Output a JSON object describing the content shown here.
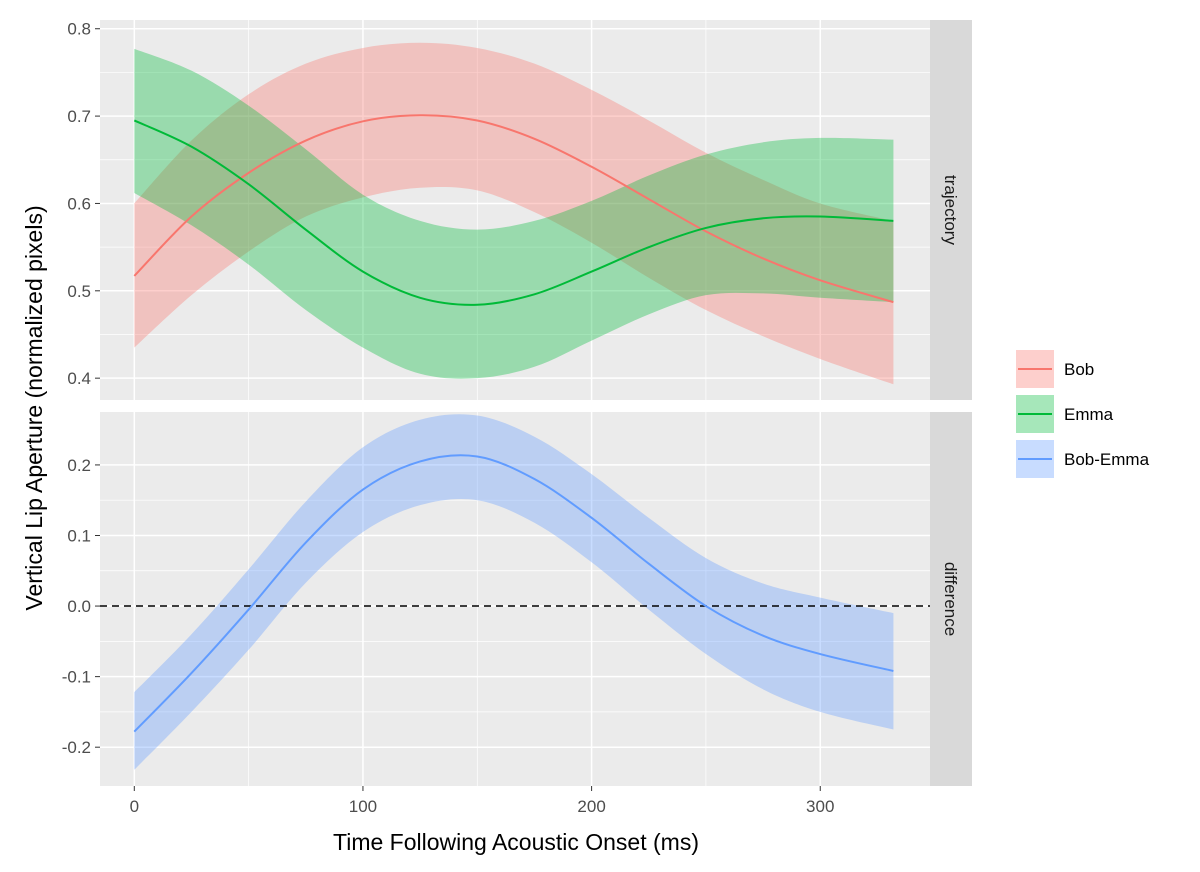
{
  "chart_data": {
    "type": "line",
    "xlabel": "Time Following Acoustic Onset (ms)",
    "ylabel": "Vertical Lip Aperture (normalized pixels)",
    "xlim": [
      -15,
      348
    ],
    "x_ticks": [
      0,
      100,
      200,
      300
    ],
    "grid": true,
    "legend_position": "right",
    "panels": [
      {
        "strip": "trajectory",
        "ylim": [
          0.375,
          0.81
        ],
        "y_ticks": [
          0.4,
          0.5,
          0.6,
          0.7,
          0.8
        ],
        "y_tick_labels": [
          "0.4",
          "0.5",
          "0.6",
          "0.7",
          "0.8"
        ],
        "reference_line": null,
        "series": [
          {
            "name": "Bob",
            "color": "#F8766D",
            "x": [
              0,
              25,
              50,
              75,
              100,
              125,
              150,
              175,
              200,
              225,
              250,
              275,
              300,
              332
            ],
            "y": [
              0.517,
              0.585,
              0.635,
              0.672,
              0.694,
              0.701,
              0.695,
              0.674,
              0.642,
              0.605,
              0.568,
              0.537,
              0.512,
              0.487
            ],
            "lower": [
              0.435,
              0.495,
              0.545,
              0.585,
              0.607,
              0.618,
              0.615,
              0.59,
              0.555,
              0.515,
              0.478,
              0.448,
              0.422,
              0.393
            ],
            "upper": [
              0.6,
              0.672,
              0.725,
              0.76,
              0.778,
              0.784,
              0.778,
              0.76,
              0.73,
              0.695,
              0.658,
              0.627,
              0.6,
              0.58
            ]
          },
          {
            "name": "Emma",
            "color": "#00BA38",
            "x": [
              0,
              25,
              50,
              75,
              100,
              125,
              150,
              175,
              200,
              225,
              250,
              275,
              300,
              332
            ],
            "y": [
              0.695,
              0.665,
              0.622,
              0.57,
              0.522,
              0.492,
              0.484,
              0.496,
              0.522,
              0.55,
              0.572,
              0.583,
              0.585,
              0.58
            ],
            "lower": [
              0.612,
              0.575,
              0.53,
              0.478,
              0.435,
              0.405,
              0.4,
              0.413,
              0.443,
              0.473,
              0.495,
              0.497,
              0.492,
              0.487
            ],
            "upper": [
              0.777,
              0.752,
              0.712,
              0.662,
              0.61,
              0.58,
              0.57,
              0.58,
              0.603,
              0.632,
              0.656,
              0.67,
              0.675,
              0.673
            ]
          }
        ]
      },
      {
        "strip": "difference",
        "ylim": [
          -0.255,
          0.275
        ],
        "y_ticks": [
          -0.2,
          -0.1,
          0.0,
          0.1,
          0.2
        ],
        "y_tick_labels": [
          "-0.2",
          "-0.1",
          "0.0",
          "0.1",
          "0.2"
        ],
        "reference_line": 0,
        "series": [
          {
            "name": "Bob-Emma",
            "color": "#619CFF",
            "x": [
              0,
              25,
              50,
              75,
              100,
              125,
              150,
              175,
              200,
              225,
              250,
              275,
              300,
              332
            ],
            "y": [
              -0.178,
              -0.095,
              -0.005,
              0.09,
              0.165,
              0.205,
              0.212,
              0.18,
              0.125,
              0.06,
              0.0,
              -0.042,
              -0.068,
              -0.092
            ],
            "lower": [
              -0.232,
              -0.15,
              -0.062,
              0.033,
              0.105,
              0.143,
              0.15,
              0.118,
              0.062,
              -0.005,
              -0.068,
              -0.118,
              -0.15,
              -0.175
            ],
            "upper": [
              -0.122,
              -0.04,
              0.052,
              0.148,
              0.225,
              0.264,
              0.27,
              0.24,
              0.187,
              0.125,
              0.068,
              0.032,
              0.012,
              -0.01
            ]
          }
        ]
      }
    ]
  }
}
